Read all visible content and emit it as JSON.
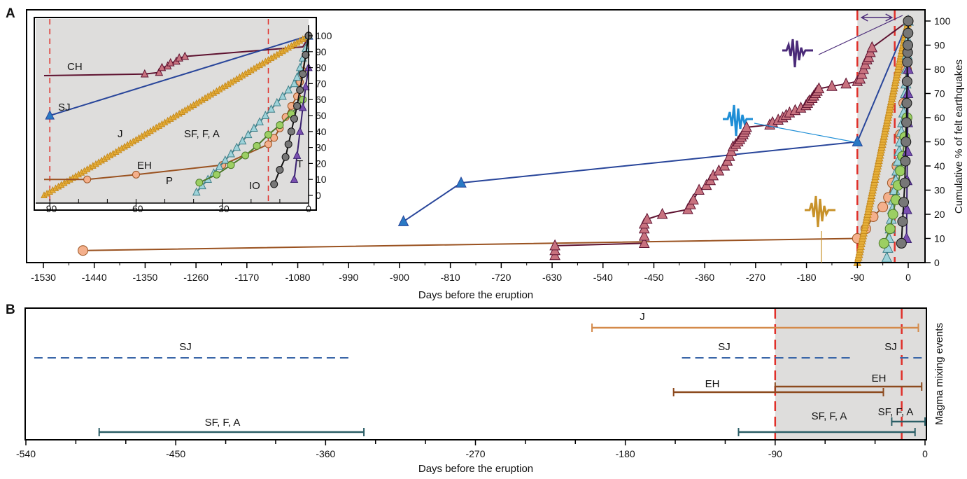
{
  "colors": {
    "CH": "#5e1230",
    "CH_marker": "#c8727f",
    "SJ": "#28459a",
    "SJ_marker": "#2979c4",
    "J": "#c58a1e",
    "J_marker": "#e7b03a",
    "EH": "#9a5220",
    "EH_marker": "#f4b08c",
    "P": "#4d7a2a",
    "P_marker": "#9ccf63",
    "SF": "#3f7f88",
    "SF_marker": "#9fd3da",
    "T": "#3a2270",
    "T_marker": "#7a4fb0",
    "IO": "#111111",
    "IO_marker": "#777777",
    "shade": "#dedddc",
    "dash_red": "#e0302a",
    "seismo_purple": "#4a2a78",
    "seismo_blue": "#1e8ed6",
    "seismo_gold": "#c8922a",
    "panelB_J": "#d48a4a",
    "panelB_SJ": "#3a66a8",
    "panelB_EH": "#8c4a1e",
    "panelB_SF": "#2b5e66"
  },
  "chart_data": [
    {
      "id": "A",
      "panel_label": "A",
      "type": "scatter",
      "xlabel": "Days before the eruption",
      "ylabel": "Cumulative % of felt earthquakes",
      "xlim": [
        -1530,
        0
      ],
      "ylim": [
        0,
        100
      ],
      "xticks": [
        -1530,
        -1440,
        -1350,
        -1260,
        -1170,
        -1080,
        -990,
        -900,
        -810,
        -720,
        -630,
        -540,
        -450,
        -360,
        -270,
        -180,
        -90,
        0
      ],
      "xtick_labels": [
        "-1530",
        "-1440",
        "-1350",
        "-1260",
        "-1170",
        "-1080",
        "-990",
        "-900",
        "-810",
        "-720",
        "-630",
        "-540",
        "-450",
        "-360",
        "-270",
        "-180",
        "-90",
        "0"
      ],
      "yticks": [
        0,
        10,
        20,
        30,
        40,
        50,
        60,
        70,
        80,
        90,
        100
      ],
      "ytick_labels": [
        "0",
        "10",
        "20",
        "30",
        "40",
        "50",
        "60",
        "70",
        "80",
        "90",
        "100"
      ],
      "shaded_region": [
        -90,
        0
      ],
      "dashed_lines": [
        -90,
        -14
      ],
      "arrow": {
        "from": -90,
        "to": -14
      },
      "series": [
        {
          "key": "EH",
          "marker": "circle",
          "x": [
            -1460,
            -90,
            -75,
            -62,
            -45,
            -35,
            -28,
            -20,
            -14,
            -8,
            -3,
            0
          ],
          "y": [
            5,
            10,
            14,
            19,
            23,
            27,
            33,
            40,
            53,
            66,
            80,
            100
          ]
        },
        {
          "key": "SJ",
          "marker": "triangle",
          "x": [
            -893,
            -791,
            -90,
            0
          ],
          "y": [
            17,
            33,
            50,
            100
          ]
        },
        {
          "key": "CH",
          "marker": "triangle",
          "x": [
            -625,
            -625,
            -625,
            -467,
            -467,
            -467,
            -467,
            -462,
            -435,
            -390,
            -385,
            -380,
            -370,
            -357,
            -350,
            -345,
            -335,
            -325,
            -320,
            -316,
            -313,
            -310,
            -305,
            -301,
            -298,
            -295,
            -292,
            -290,
            -288,
            -286,
            -245,
            -240,
            -230,
            -222,
            -216,
            -210,
            -200,
            -190,
            -181,
            -178,
            -175,
            -170,
            -167,
            -164,
            -161,
            -158,
            -135,
            -110,
            -90,
            -85,
            -82,
            -79,
            -76,
            -73,
            -70,
            -67,
            -64,
            0
          ],
          "y": [
            3,
            5,
            7,
            8,
            11,
            14,
            16,
            18,
            20,
            22,
            24,
            26,
            30,
            32,
            34,
            36,
            38,
            40,
            42,
            44,
            46,
            48,
            49,
            50,
            51,
            52,
            53,
            54,
            55,
            56,
            57,
            58,
            59,
            60,
            61,
            62,
            63,
            64,
            65,
            66,
            67,
            68,
            69,
            70,
            71,
            72,
            73,
            74,
            75,
            76,
            78,
            80,
            82,
            84,
            85,
            87,
            89,
            100
          ]
        },
        {
          "key": "J",
          "marker": "triangle",
          "x_range": [
            -90,
            0
          ],
          "y_range": [
            0,
            100
          ],
          "n": 91
        },
        {
          "key": "SF",
          "marker": "triangle",
          "x": [
            -38,
            -36,
            -34,
            -32,
            -30,
            -28,
            -26,
            -24,
            -22,
            -20,
            -18,
            -16,
            -14,
            -12,
            -10,
            -8,
            -6,
            -5,
            -4,
            -3,
            -2,
            -1,
            0
          ],
          "y": [
            2,
            6,
            10,
            14,
            18,
            22,
            26,
            30,
            34,
            38,
            42,
            46,
            50,
            54,
            58,
            62,
            66,
            70,
            74,
            80,
            86,
            92,
            100
          ]
        },
        {
          "key": "P",
          "marker": "circle",
          "x": [
            -43,
            -32,
            -27,
            -22,
            -18,
            -14,
            -10,
            -6,
            -2
          ],
          "y": [
            8,
            14,
            20,
            26,
            32,
            38,
            44,
            52,
            60
          ]
        },
        {
          "key": "T",
          "marker": "triangle",
          "x": [
            -3,
            -2.5,
            -2,
            -1.5,
            -1,
            -0.5,
            0
          ],
          "y": [
            10,
            22,
            34,
            46,
            58,
            70,
            80
          ]
        },
        {
          "key": "IO",
          "marker": "circle",
          "x": [
            -12,
            -10,
            -8,
            -6,
            -5,
            -4,
            -3,
            -2.5,
            -2,
            -1.5,
            -1,
            -0.6,
            -0.3,
            0
          ],
          "y": [
            8,
            17,
            25,
            33,
            42,
            50,
            58,
            66,
            75,
            83,
            87,
            90,
            95,
            100
          ]
        }
      ]
    },
    {
      "id": "inset",
      "type": "scatter",
      "xlim": [
        -92,
        0
      ],
      "ylim": [
        0,
        100
      ],
      "xticks": [
        -90,
        -60,
        -30,
        0
      ],
      "xtick_labels": [
        "-90",
        "-60",
        "-30",
        "0"
      ],
      "yticks": [
        0,
        10,
        20,
        30,
        40,
        50,
        60,
        70,
        80,
        90,
        100
      ],
      "ytick_labels": [
        "0",
        "10",
        "20",
        "30",
        "40",
        "50",
        "60",
        "70",
        "80",
        "90",
        "100"
      ],
      "dashed_lines": [
        -90,
        -14
      ],
      "labels": [
        "CH",
        "SJ",
        "J",
        "EH",
        "SF, F, A",
        "P",
        "T",
        "IO"
      ],
      "series": [
        {
          "key": "CH",
          "x": [
            -92,
            -57,
            -52,
            -51,
            -49,
            -48,
            -46,
            -45,
            -43,
            -2,
            -1,
            0
          ],
          "y": [
            75,
            76,
            77,
            80,
            81,
            83,
            84,
            86,
            87,
            93,
            96,
            100
          ]
        },
        {
          "key": "SJ",
          "x": [
            -90,
            0
          ],
          "y": [
            50,
            100
          ]
        },
        {
          "key": "J",
          "x_range": [
            -92,
            0
          ],
          "y_range": [
            0,
            100
          ],
          "n": 93
        },
        {
          "key": "EH",
          "x": [
            -92,
            -77,
            -60,
            -30,
            -14,
            -12,
            -10,
            -8,
            -6,
            -4,
            -3,
            -2,
            -1,
            0
          ],
          "y": [
            10,
            10,
            13,
            19,
            32,
            36,
            42,
            49,
            56,
            62,
            71,
            78,
            88,
            100
          ]
        },
        {
          "key": "P",
          "x": [
            -38,
            -32,
            -27,
            -22,
            -18,
            -14,
            -10,
            -6,
            -2
          ],
          "y": [
            8,
            13,
            19,
            25,
            31,
            38,
            44,
            51,
            60
          ]
        },
        {
          "key": "SF",
          "x": [
            -39,
            -37,
            -35,
            -33,
            -31,
            -29,
            -27,
            -25,
            -23,
            -21,
            -19,
            -17,
            -15,
            -13,
            -11,
            -9,
            -7,
            -5,
            -4,
            -3,
            -2,
            -1,
            0
          ],
          "y": [
            2,
            6,
            10,
            14,
            18,
            22,
            26,
            30,
            34,
            38,
            42,
            46,
            50,
            54,
            58,
            62,
            66,
            70,
            74,
            80,
            86,
            92,
            100
          ]
        },
        {
          "key": "T",
          "x": [
            -5,
            -4,
            -3,
            -2,
            -1,
            0
          ],
          "y": [
            10,
            25,
            40,
            55,
            68,
            80
          ]
        },
        {
          "key": "IO",
          "x": [
            -12,
            -10,
            -8,
            -7,
            -6,
            -5,
            -4,
            -3,
            -2,
            -1,
            0
          ],
          "y": [
            7,
            16,
            24,
            32,
            40,
            48,
            56,
            66,
            76,
            88,
            100
          ]
        }
      ]
    },
    {
      "id": "B",
      "panel_label": "B",
      "type": "range",
      "xlabel": "Days before the eruption",
      "ylabel": "Magma mixing events",
      "xlim": [
        -540,
        0
      ],
      "xticks": [
        -540,
        -450,
        -360,
        -270,
        -180,
        -90,
        0
      ],
      "xtick_labels": [
        "-540",
        "-450",
        "-360",
        "-270",
        "-180",
        "-90",
        "0"
      ],
      "shaded_region": [
        -90,
        0
      ],
      "dashed_lines": [
        -90,
        -14
      ],
      "bars": [
        {
          "label": "J",
          "key": "panelB_J",
          "x0": -200,
          "x1": -4,
          "row": 1,
          "style": "solid"
        },
        {
          "label": "SJ",
          "key": "panelB_SJ",
          "x0": -535,
          "x1": -344,
          "row": 2,
          "style": "dashed"
        },
        {
          "label": "SJ",
          "key": "panelB_SJ",
          "x0": -146,
          "x1": -43,
          "row": 2,
          "style": "dashed"
        },
        {
          "label": "SJ",
          "key": "panelB_SJ",
          "x0": -15,
          "x1": -1,
          "row": 2,
          "style": "dashed"
        },
        {
          "label": "EH",
          "key": "panelB_EH",
          "x0": -151,
          "x1": -25,
          "row": 3,
          "style": "solid"
        },
        {
          "label": "EH",
          "key": "panelB_EH",
          "x0": -90,
          "x1": -2,
          "row": 3.1,
          "style": "solid"
        },
        {
          "label": "SF, F, A",
          "key": "panelB_SF",
          "x0": -496,
          "x1": -337,
          "row": 4,
          "style": "solid"
        },
        {
          "label": "SF, F, A",
          "key": "panelB_SF",
          "x0": -112,
          "x1": -6,
          "row": 4,
          "style": "solid"
        },
        {
          "label": "SF, F, A",
          "key": "panelB_SF",
          "x0": -20,
          "x1": 0,
          "row": 3.9,
          "style": "solid"
        }
      ]
    }
  ]
}
